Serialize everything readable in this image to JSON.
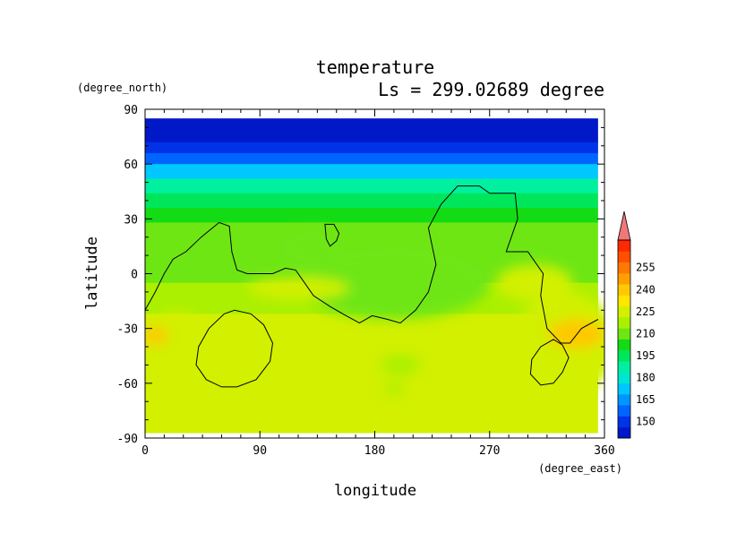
{
  "chart_data": {
    "type": "heatmap",
    "title": "temperature",
    "subtitle": "Ls = 299.02689 degree",
    "xlabel": "longitude",
    "ylabel": "latitude",
    "xunit": "(degree_east)",
    "yunit": "(degree_north)",
    "xlim": [
      0,
      360
    ],
    "ylim": [
      -90,
      90
    ],
    "grid": false,
    "xticks": [
      0,
      90,
      180,
      270,
      360
    ],
    "yticks": [
      90,
      60,
      30,
      0,
      -30,
      -60,
      -90
    ],
    "data_extent": {
      "lon": [
        0,
        355
      ],
      "lat": [
        -87,
        85
      ]
    },
    "colorbar": {
      "position": "right",
      "labels": [
        "150",
        "165",
        "180",
        "195",
        "210",
        "225",
        "240",
        "255"
      ],
      "levels": [
        150,
        165,
        180,
        195,
        210,
        225,
        240,
        255
      ],
      "colors": [
        "#0018c8",
        "#0032e8",
        "#0064ff",
        "#0096ff",
        "#00c8ff",
        "#00e6d2",
        "#00f0a0",
        "#00e65a",
        "#14dc14",
        "#6ee614",
        "#aaf000",
        "#d2f000",
        "#ffe600",
        "#ffc800",
        "#ffa000",
        "#ff7800",
        "#ff5000",
        "#ff2800"
      ],
      "over_color": "#f07878"
    },
    "band_profile": [
      {
        "lat": 85,
        "temp": 147
      },
      {
        "lat": 72,
        "temp": 152
      },
      {
        "lat": 66,
        "temp": 160
      },
      {
        "lat": 60,
        "temp": 175
      },
      {
        "lat": 52,
        "temp": 188
      },
      {
        "lat": 44,
        "temp": 198
      },
      {
        "lat": 36,
        "temp": 205
      },
      {
        "lat": 28,
        "temp": 210
      },
      {
        "lat": 18,
        "temp": 214
      },
      {
        "lat": 8,
        "temp": 216
      },
      {
        "lat": -5,
        "temp": 219
      },
      {
        "lat": -15,
        "temp": 222
      },
      {
        "lat": -22,
        "temp": 226
      },
      {
        "lat": -87,
        "temp": 226
      }
    ],
    "warm_anomalies": [
      {
        "lon": 25,
        "lat": -45,
        "rlon": 28,
        "rlat": 24,
        "temp": 232
      },
      {
        "lon": 8,
        "lat": -34,
        "rlon": 10,
        "rlat": 5,
        "temp": 240
      },
      {
        "lon": 330,
        "lat": -38,
        "rlon": 40,
        "rlat": 28,
        "temp": 232
      },
      {
        "lon": 338,
        "lat": -33,
        "rlon": 22,
        "rlat": 8,
        "temp": 240
      },
      {
        "lon": 305,
        "lat": -5,
        "rlon": 30,
        "rlat": 10,
        "temp": 226
      },
      {
        "lon": 120,
        "lat": -8,
        "rlon": 40,
        "rlat": 6,
        "temp": 226
      }
    ],
    "cool_anomalies": [
      {
        "lon": 195,
        "lat": -5,
        "rlon": 75,
        "rlat": 20,
        "temp": 214
      },
      {
        "lon": 200,
        "lat": -50,
        "rlon": 15,
        "rlat": 6,
        "temp": 220
      },
      {
        "lon": 195,
        "lat": -63,
        "rlon": 8,
        "rlat": 3,
        "temp": 219
      },
      {
        "lon": 130,
        "lat": 14,
        "rlon": 25,
        "rlat": 10,
        "temp": 213
      }
    ],
    "contours": [
      {
        "name": "topography-main",
        "closed": false,
        "points": [
          [
            0,
            -20
          ],
          [
            8,
            -10
          ],
          [
            15,
            0
          ],
          [
            22,
            8
          ],
          [
            32,
            12
          ],
          [
            44,
            20
          ],
          [
            58,
            28
          ],
          [
            66,
            26
          ],
          [
            68,
            12
          ],
          [
            72,
            2
          ],
          [
            80,
            0
          ],
          [
            100,
            0
          ],
          [
            110,
            3
          ],
          [
            118,
            2
          ],
          [
            125,
            -5
          ],
          [
            132,
            -12
          ],
          [
            145,
            -18
          ],
          [
            155,
            -22
          ],
          [
            168,
            -27
          ],
          [
            178,
            -23
          ],
          [
            190,
            -25
          ],
          [
            200,
            -27
          ],
          [
            212,
            -20
          ],
          [
            222,
            -10
          ],
          [
            228,
            5
          ],
          [
            222,
            25
          ],
          [
            232,
            38
          ],
          [
            245,
            48
          ],
          [
            262,
            48
          ],
          [
            270,
            44
          ],
          [
            290,
            44
          ],
          [
            292,
            30
          ],
          [
            283,
            12
          ],
          [
            300,
            12
          ],
          [
            312,
            0
          ],
          [
            310,
            -12
          ],
          [
            315,
            -30
          ],
          [
            326,
            -38
          ],
          [
            333,
            -38
          ],
          [
            342,
            -30
          ],
          [
            355,
            -25
          ]
        ]
      },
      {
        "name": "topography-small-north",
        "closed": true,
        "points": [
          [
            141,
            27
          ],
          [
            148,
            27
          ],
          [
            152,
            22
          ],
          [
            150,
            18
          ],
          [
            145,
            15
          ],
          [
            142,
            19
          ]
        ]
      },
      {
        "name": "topography-west-crater",
        "closed": true,
        "points": [
          [
            70,
            -20
          ],
          [
            62,
            -22
          ],
          [
            50,
            -30
          ],
          [
            42,
            -40
          ],
          [
            40,
            -50
          ],
          [
            48,
            -58
          ],
          [
            60,
            -62
          ],
          [
            72,
            -62
          ],
          [
            87,
            -58
          ],
          [
            98,
            -48
          ],
          [
            100,
            -38
          ],
          [
            93,
            -28
          ],
          [
            83,
            -22
          ]
        ]
      },
      {
        "name": "topography-east-crater",
        "closed": true,
        "points": [
          [
            320,
            -36
          ],
          [
            310,
            -40
          ],
          [
            303,
            -47
          ],
          [
            302,
            -55
          ],
          [
            310,
            -61
          ],
          [
            320,
            -60
          ],
          [
            327,
            -54
          ],
          [
            332,
            -46
          ],
          [
            327,
            -39
          ]
        ]
      }
    ]
  }
}
